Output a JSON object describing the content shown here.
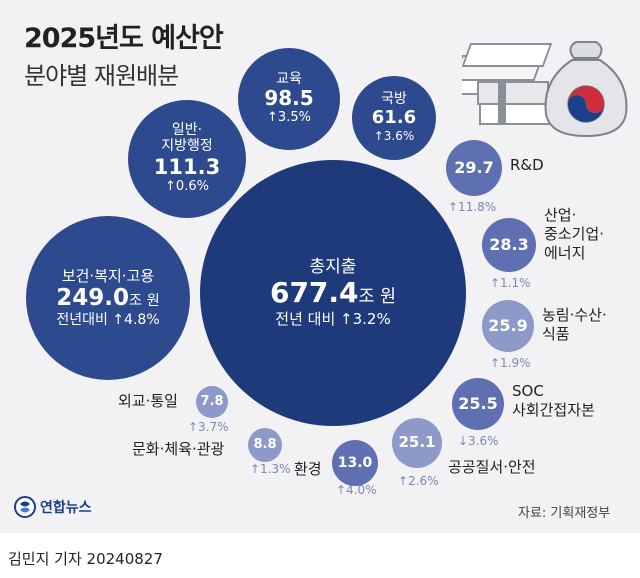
{
  "header": {
    "title": "2025년도 예산안",
    "subtitle": "분야별 재원배분"
  },
  "chart_data": {
    "type": "bubble",
    "total": {
      "label": "총지출",
      "value": "677.4",
      "unit": "조 원",
      "change_prefix": "전년 대비",
      "change": "↑3.2%"
    },
    "items": [
      {
        "label": "보건·복지·고용",
        "value": "249.0",
        "unit": "조 원",
        "change_prefix": "전년대비",
        "change": "↑4.8%"
      },
      {
        "label": "일반·\n지방행정",
        "value": "111.3",
        "change": "↑0.6%"
      },
      {
        "label": "교육",
        "value": "98.5",
        "change": "↑3.5%"
      },
      {
        "label": "국방",
        "value": "61.6",
        "change": "↑3.6%"
      },
      {
        "label": "R&D",
        "value": "29.7",
        "change": "↑11.8%"
      },
      {
        "label": "산업·\n중소기업·\n에너지",
        "value": "28.3",
        "change": "↑1.1%"
      },
      {
        "label": "농림·수산·\n식품",
        "value": "25.9",
        "change": "↑1.9%"
      },
      {
        "label": "SOC\n사회간접자본",
        "value": "25.5",
        "change": "↓3.6%"
      },
      {
        "label": "공공질서·안전",
        "value": "25.1",
        "change": "↑2.6%"
      },
      {
        "label": "환경",
        "value": "13.0",
        "change": "↑4.0%"
      },
      {
        "label": "문화·체육·관광",
        "value": "8.8",
        "change": "↑1.3%"
      },
      {
        "label": "외교·통일",
        "value": "7.8",
        "change": "↑3.7%"
      }
    ]
  },
  "colors": {
    "dark_navy": "#1f3a7a",
    "mid_blue": "#2e4a8e",
    "light_blue": "#5f70b2",
    "pale_blue": "#8d99c9",
    "change_text": "#7b88b8"
  },
  "footer": {
    "logo": "연합뉴스",
    "source": "자료: 기획재정부",
    "credit": "김민지 기자  20240827"
  }
}
